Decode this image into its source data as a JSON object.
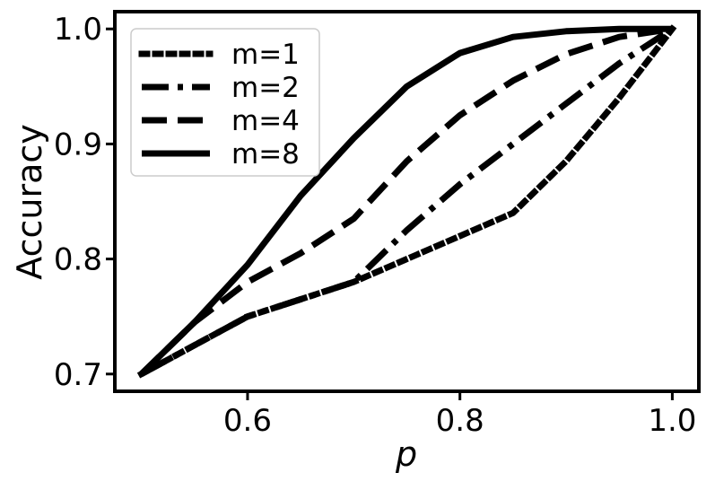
{
  "chart_data": {
    "type": "line",
    "title": "",
    "xlabel": "p",
    "ylabel": "Accuracy",
    "xlim": [
      0.475,
      1.025
    ],
    "ylim": [
      0.685,
      1.015
    ],
    "xticks": [
      "0.6",
      "0.8",
      "1.0"
    ],
    "yticks": [
      "0.7",
      "0.8",
      "0.9",
      "1.0"
    ],
    "grid": false,
    "legend_position": "top-left",
    "series": [
      {
        "name": "m=1",
        "style": "dotted",
        "x": [
          0.5,
          0.55,
          0.6,
          0.65,
          0.7,
          0.75,
          0.8,
          0.85,
          0.9,
          0.95,
          1.0
        ],
        "y": [
          0.7,
          0.725,
          0.75,
          0.765,
          0.78,
          0.8,
          0.82,
          0.84,
          0.885,
          0.94,
          1.0
        ]
      },
      {
        "name": "m=2",
        "style": "dashdot",
        "x": [
          0.5,
          0.55,
          0.6,
          0.65,
          0.7,
          0.75,
          0.8,
          0.85,
          0.9,
          0.95,
          1.0
        ],
        "y": [
          0.7,
          0.725,
          0.75,
          0.765,
          0.78,
          0.825,
          0.865,
          0.9,
          0.935,
          0.97,
          1.0
        ]
      },
      {
        "name": "m=4",
        "style": "dashed",
        "x": [
          0.5,
          0.55,
          0.6,
          0.65,
          0.7,
          0.75,
          0.8,
          0.85,
          0.9,
          0.95,
          1.0
        ],
        "y": [
          0.7,
          0.745,
          0.78,
          0.805,
          0.835,
          0.885,
          0.925,
          0.955,
          0.978,
          0.993,
          1.0
        ]
      },
      {
        "name": "m=8",
        "style": "solid",
        "x": [
          0.5,
          0.55,
          0.6,
          0.65,
          0.7,
          0.75,
          0.8,
          0.85,
          0.9,
          0.95,
          1.0
        ],
        "y": [
          0.7,
          0.745,
          0.795,
          0.855,
          0.905,
          0.95,
          0.979,
          0.993,
          0.998,
          1.0,
          1.0
        ]
      }
    ]
  }
}
